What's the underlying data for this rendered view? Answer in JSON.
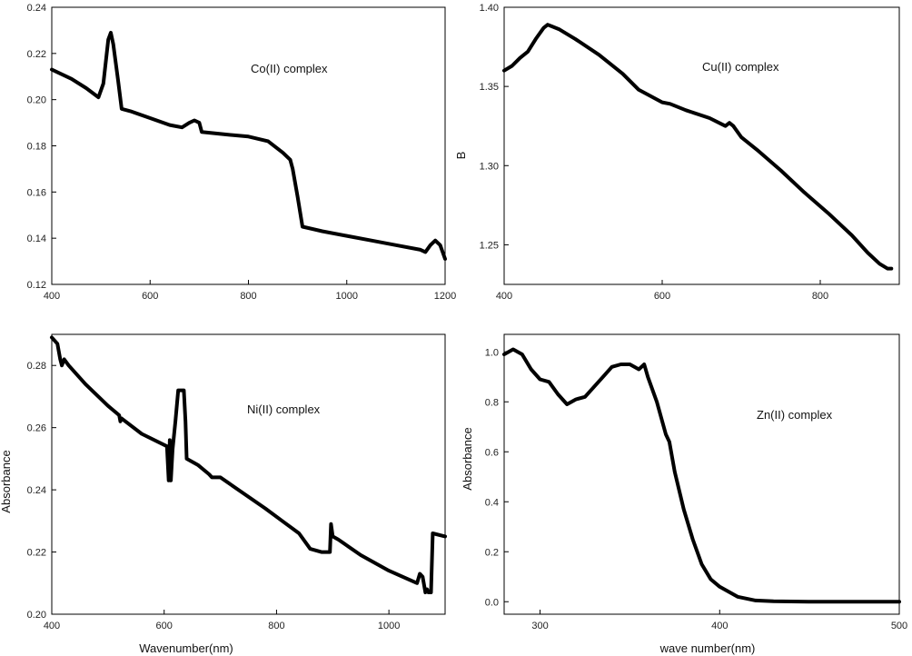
{
  "colors": {
    "background": "#ffffff",
    "line": "#000000",
    "axis": "#000000"
  },
  "chart_data": [
    {
      "type": "line",
      "panel": "top-left",
      "title": "",
      "annotation": "Co(II) complex",
      "xlabel": "",
      "ylabel": "",
      "xlim": [
        400,
        1200
      ],
      "ylim": [
        0.12,
        0.24
      ],
      "xticks": [
        400,
        600,
        800,
        1000,
        1200
      ],
      "xtick_labels": [
        "400",
        "600",
        "800",
        "1000",
        "1200"
      ],
      "yticks": [
        0.12,
        0.14,
        0.16,
        0.18,
        0.2,
        0.22,
        0.24
      ],
      "ytick_labels": [
        "0.12",
        "0.14",
        "0.16",
        "0.18",
        "0.20",
        "0.22",
        "0.24"
      ],
      "series": [
        {
          "name": "Co(II) complex",
          "x": [
            400,
            440,
            470,
            495,
            505,
            515,
            520,
            525,
            535,
            542,
            560,
            600,
            640,
            665,
            680,
            690,
            700,
            705,
            750,
            800,
            840,
            870,
            885,
            890,
            900,
            910,
            950,
            1000,
            1050,
            1100,
            1150,
            1160,
            1170,
            1180,
            1190,
            1200
          ],
          "y": [
            0.213,
            0.209,
            0.205,
            0.201,
            0.207,
            0.226,
            0.229,
            0.224,
            0.208,
            0.196,
            0.195,
            0.192,
            0.189,
            0.188,
            0.19,
            0.191,
            0.19,
            0.186,
            0.185,
            0.184,
            0.182,
            0.177,
            0.174,
            0.17,
            0.158,
            0.145,
            0.143,
            0.141,
            0.139,
            0.137,
            0.135,
            0.134,
            0.137,
            0.139,
            0.137,
            0.131
          ]
        }
      ]
    },
    {
      "type": "line",
      "panel": "top-right",
      "title": "",
      "annotation": "Cu(II) complex",
      "xlabel": "",
      "ylabel": "B",
      "xlim": [
        400,
        900
      ],
      "ylim": [
        1.225,
        1.4
      ],
      "xticks": [
        400,
        600,
        800
      ],
      "xtick_labels": [
        "400",
        "600",
        "800"
      ],
      "yticks": [
        1.25,
        1.3,
        1.35,
        1.4
      ],
      "ytick_labels": [
        "1.25",
        "1.30",
        "1.35",
        "1.40"
      ],
      "series": [
        {
          "name": "Cu(II) complex",
          "x": [
            400,
            410,
            420,
            430,
            440,
            450,
            455,
            460,
            470,
            490,
            520,
            550,
            570,
            600,
            610,
            630,
            660,
            680,
            685,
            690,
            700,
            720,
            750,
            780,
            810,
            840,
            860,
            875,
            885,
            890
          ],
          "y": [
            1.36,
            1.363,
            1.368,
            1.372,
            1.38,
            1.387,
            1.389,
            1.388,
            1.386,
            1.38,
            1.37,
            1.358,
            1.348,
            1.34,
            1.339,
            1.335,
            1.33,
            1.325,
            1.327,
            1.325,
            1.318,
            1.31,
            1.297,
            1.283,
            1.27,
            1.256,
            1.245,
            1.238,
            1.235,
            1.235
          ]
        }
      ]
    },
    {
      "type": "line",
      "panel": "bottom-left",
      "title": "",
      "annotation": "Ni(II) complex",
      "xlabel": "Wavenumber(nm)",
      "ylabel": "Absorbance",
      "xlim": [
        400,
        1100
      ],
      "ylim": [
        0.2,
        0.29
      ],
      "xticks": [
        400,
        600,
        800,
        1000
      ],
      "xtick_labels": [
        "400",
        "600",
        "800",
        "1000"
      ],
      "yticks": [
        0.2,
        0.22,
        0.24,
        0.26,
        0.28
      ],
      "ytick_labels": [
        "0.20",
        "0.22",
        "0.24",
        "0.26",
        "0.28"
      ],
      "series": [
        {
          "name": "Ni(II) complex",
          "x": [
            400,
            410,
            415,
            418,
            422,
            430,
            460,
            500,
            520,
            522,
            524,
            560,
            605,
            608,
            610,
            612,
            615,
            620,
            625,
            630,
            635,
            638,
            640,
            660,
            680,
            685,
            700,
            740,
            780,
            810,
            840,
            860,
            880,
            895,
            897,
            900,
            910,
            950,
            1000,
            1050,
            1055,
            1060,
            1065,
            1068,
            1070,
            1075,
            1078,
            1100
          ],
          "y": [
            0.289,
            0.287,
            0.282,
            0.28,
            0.282,
            0.28,
            0.274,
            0.267,
            0.264,
            0.262,
            0.263,
            0.258,
            0.254,
            0.243,
            0.256,
            0.243,
            0.253,
            0.262,
            0.272,
            0.272,
            0.272,
            0.262,
            0.25,
            0.248,
            0.245,
            0.244,
            0.244,
            0.239,
            0.234,
            0.23,
            0.226,
            0.221,
            0.22,
            0.22,
            0.229,
            0.225,
            0.224,
            0.219,
            0.214,
            0.21,
            0.213,
            0.212,
            0.207,
            0.208,
            0.207,
            0.207,
            0.226,
            0.225
          ]
        }
      ]
    },
    {
      "type": "line",
      "panel": "bottom-right",
      "title": "",
      "annotation": "Zn(II) complex",
      "xlabel": "wave number(nm)",
      "ylabel": "Absorbance",
      "xlim": [
        280,
        500
      ],
      "ylim": [
        -0.05,
        1.07
      ],
      "xticks": [
        300,
        400,
        500
      ],
      "xtick_labels": [
        "300",
        "400",
        "500"
      ],
      "yticks": [
        0,
        0.2,
        0.4,
        0.6,
        0.8,
        1.0
      ],
      "ytick_labels": [
        "0.0",
        "0.2",
        "0.4",
        "0.6",
        "0.8",
        "1.0"
      ],
      "series": [
        {
          "name": "Zn(II) complex",
          "x": [
            280,
            285,
            290,
            295,
            300,
            305,
            310,
            315,
            320,
            325,
            330,
            335,
            340,
            345,
            350,
            355,
            358,
            360,
            365,
            370,
            372,
            375,
            380,
            385,
            390,
            395,
            400,
            410,
            420,
            430,
            450,
            500
          ],
          "y": [
            0.99,
            1.01,
            0.99,
            0.93,
            0.89,
            0.88,
            0.83,
            0.79,
            0.81,
            0.82,
            0.86,
            0.9,
            0.94,
            0.95,
            0.95,
            0.93,
            0.95,
            0.9,
            0.8,
            0.67,
            0.64,
            0.52,
            0.37,
            0.25,
            0.15,
            0.09,
            0.06,
            0.02,
            0.005,
            0.002,
            0.0,
            0.0
          ]
        }
      ]
    }
  ]
}
